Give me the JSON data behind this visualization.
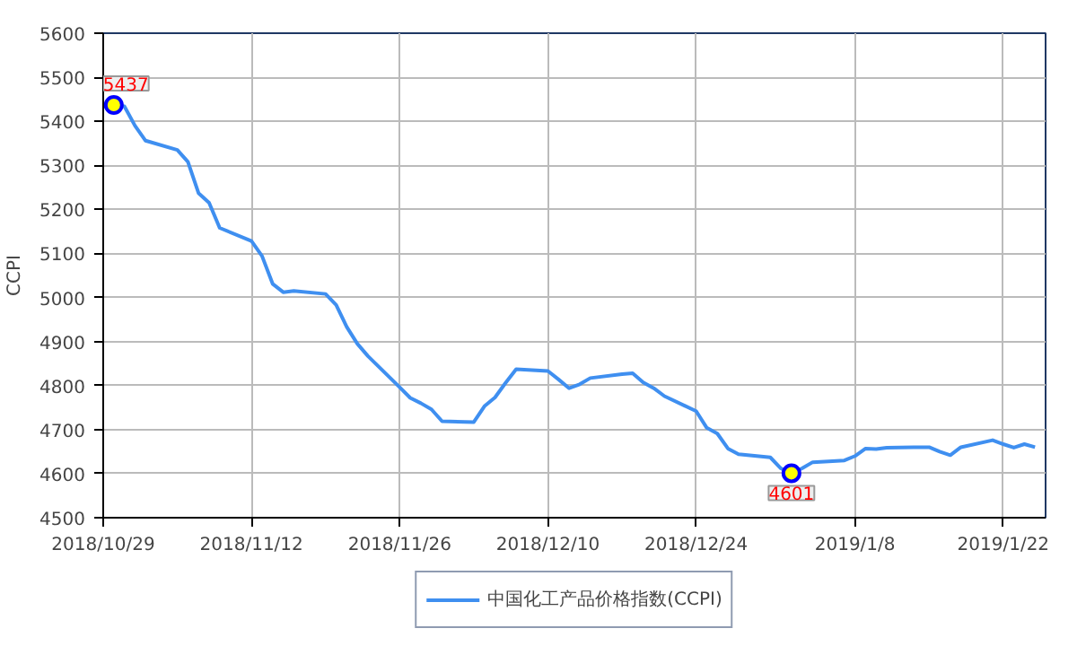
{
  "chart_data": {
    "type": "line",
    "ylabel": "CCPI",
    "x": [
      "2018-10-29",
      "2018-10-30",
      "2018-10-31",
      "2018-11-01",
      "2018-11-02",
      "2018-11-05",
      "2018-11-06",
      "2018-11-07",
      "2018-11-08",
      "2018-11-09",
      "2018-11-12",
      "2018-11-13",
      "2018-11-14",
      "2018-11-15",
      "2018-11-16",
      "2018-11-19",
      "2018-11-20",
      "2018-11-21",
      "2018-11-22",
      "2018-11-23",
      "2018-11-26",
      "2018-11-27",
      "2018-11-28",
      "2018-11-29",
      "2018-11-30",
      "2018-12-03",
      "2018-12-04",
      "2018-12-05",
      "2018-12-06",
      "2018-12-07",
      "2018-12-10",
      "2018-12-11",
      "2018-12-12",
      "2018-12-13",
      "2018-12-14",
      "2018-12-17",
      "2018-12-18",
      "2018-12-19",
      "2018-12-20",
      "2018-12-21",
      "2018-12-24",
      "2018-12-25",
      "2018-12-26",
      "2018-12-27",
      "2018-12-28",
      "2018-12-31",
      "2019-01-01",
      "2019-01-02",
      "2019-01-03",
      "2019-01-04",
      "2019-01-07",
      "2019-01-08",
      "2019-01-09",
      "2019-01-10",
      "2019-01-11",
      "2019-01-14",
      "2019-01-15",
      "2019-01-16",
      "2019-01-17",
      "2019-01-18",
      "2019-01-21",
      "2019-01-22",
      "2019-01-23",
      "2019-01-24",
      "2019-01-25"
    ],
    "series": [
      {
        "name": "中国化工产品价格指数(CCPI)",
        "color": "#3f8ff0",
        "values": [
          5433,
          5437,
          5434,
          5390,
          5356,
          5335,
          5308,
          5237,
          5215,
          5158,
          5128,
          5094,
          5031,
          5012,
          5015,
          5008,
          4983,
          4933,
          4895,
          4867,
          4796,
          4772,
          4760,
          4746,
          4719,
          4717,
          4753,
          4773,
          4806,
          4837,
          4833,
          4814,
          4794,
          4803,
          4817,
          4826,
          4828,
          4807,
          4794,
          4776,
          4742,
          4704,
          4691,
          4657,
          4644,
          4637,
          4612,
          4601,
          4612,
          4626,
          4630,
          4640,
          4657,
          4656,
          4659,
          4660,
          4660,
          4650,
          4642,
          4660,
          4676,
          4667,
          4659,
          4667,
          4660
        ]
      }
    ],
    "annotations": [
      {
        "text": "5437",
        "x": "2018-10-30",
        "y": 5437
      },
      {
        "text": "4601",
        "x": "2019-01-02",
        "y": 4601
      }
    ],
    "xlim": [
      "2018-10-29",
      "2019-01-26"
    ],
    "xticks": [
      {
        "value": "2018-10-29",
        "label": "2018/10/29"
      },
      {
        "value": "2018-11-12",
        "label": "2018/11/12"
      },
      {
        "value": "2018-11-26",
        "label": "2018/11/26"
      },
      {
        "value": "2018-12-10",
        "label": "2018/12/10"
      },
      {
        "value": "2018-12-24",
        "label": "2018/12/24"
      },
      {
        "value": "2019-01-08",
        "label": "2019/1/8"
      },
      {
        "value": "2019-01-22",
        "label": "2019/1/22"
      }
    ],
    "ylim": [
      4500,
      5600
    ],
    "yticks": [
      4500,
      4600,
      4700,
      4800,
      4900,
      5000,
      5100,
      5200,
      5300,
      5400,
      5500,
      5600
    ],
    "grid": true,
    "legend": "bottom"
  }
}
